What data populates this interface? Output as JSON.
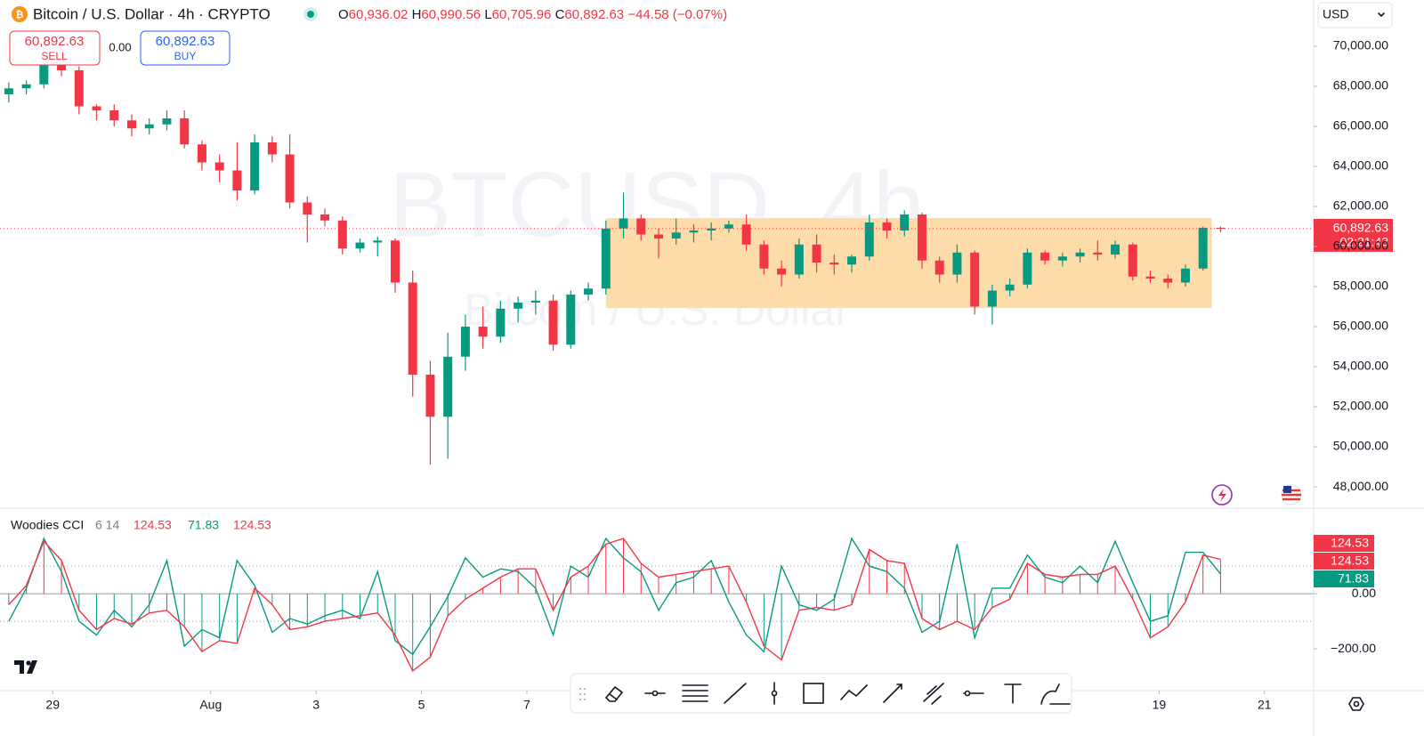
{
  "header": {
    "title": "Bitcoin / U.S. Dollar · 4h · CRYPTO",
    "ohlc": [
      {
        "key": "O",
        "text": "60,936.02"
      },
      {
        "key": "H",
        "text": "60,990.56"
      },
      {
        "key": "L",
        "text": "60,705.96"
      },
      {
        "key": "C",
        "text": "60,892.63"
      }
    ],
    "change": "−44.58 (−0.07%)",
    "currency": "USD",
    "watermark": "BTCUSD, 4h",
    "watermark_sub": "Bitcoin / U.S. Dollar"
  },
  "trade": {
    "sell_price": "60,892.63",
    "sell": "SELL",
    "spread": "0.00",
    "buy_price": "60,892.63",
    "buy": "BUY"
  },
  "chart_data": [
    {
      "type": "candlestick",
      "colors": {
        "up": "#089981",
        "down": "#f23645"
      },
      "xlim": [
        -0.5,
        74.3
      ],
      "xticks": [
        {
          "value": 2.5,
          "label": "29"
        },
        {
          "value": 11.5,
          "label": "Aug"
        },
        {
          "value": 17.5,
          "label": "3"
        },
        {
          "value": 23.5,
          "label": "5"
        },
        {
          "value": 29.5,
          "label": "7"
        },
        {
          "value": 65.5,
          "label": "19"
        },
        {
          "value": 71.5,
          "label": "21"
        }
      ],
      "ylim": [
        46980,
        72310
      ],
      "yticks": [
        {
          "value": 48000,
          "label": "48,000.00"
        },
        {
          "value": 50000,
          "label": "50,000.00"
        },
        {
          "value": 52000,
          "label": "52,000.00"
        },
        {
          "value": 54000,
          "label": "54,000.00"
        },
        {
          "value": 56000,
          "label": "56,000.00"
        },
        {
          "value": 58000,
          "label": "58,000.00"
        },
        {
          "value": 60000,
          "label": "60,000.00"
        },
        {
          "value": 62000,
          "label": "62,000.00"
        },
        {
          "value": 64000,
          "label": "64,000.00"
        },
        {
          "value": 66000,
          "label": "66,000.00"
        },
        {
          "value": 68000,
          "label": "68,000.00"
        },
        {
          "value": 70000,
          "label": "70,000.00"
        }
      ],
      "open": [
        67600,
        67900,
        68100,
        69300,
        68800,
        67000,
        66800,
        66300,
        65900,
        66100,
        66400,
        65100,
        64200,
        63800,
        62800,
        65200,
        64600,
        62200,
        61600,
        61300,
        59900,
        60200,
        60300,
        58200,
        53600,
        51500,
        54500,
        56000,
        55500,
        56900,
        57200,
        57300,
        55100,
        57600,
        57900,
        60900,
        61400,
        60600,
        60400,
        60700,
        60800,
        60900,
        61100,
        60100,
        58900,
        58600,
        60100,
        59200,
        59100,
        59500,
        61200,
        60800,
        61600,
        59300,
        58600,
        59700,
        57000,
        57800,
        58100,
        59700,
        59300,
        59500,
        59700,
        59600,
        60100,
        58500,
        58400,
        58200,
        58900,
        60936.02
      ],
      "high": [
        68200,
        68300,
        69600,
        70300,
        69000,
        67100,
        67100,
        66600,
        66400,
        66800,
        66800,
        65300,
        64600,
        65200,
        65600,
        65500,
        65600,
        62500,
        61900,
        61500,
        60400,
        60500,
        60400,
        58800,
        54300,
        55700,
        56600,
        57000,
        57300,
        57500,
        57800,
        57600,
        57800,
        58200,
        61300,
        62700,
        61600,
        60900,
        61400,
        61100,
        61200,
        61300,
        61600,
        60300,
        59300,
        60400,
        60600,
        59600,
        59600,
        61600,
        61400,
        61800,
        61700,
        59500,
        60100,
        59800,
        58100,
        58400,
        59900,
        59800,
        59700,
        59900,
        60300,
        60300,
        60200,
        58800,
        58600,
        59100,
        61000,
        60990.56
      ],
      "low": [
        67200,
        67600,
        67900,
        68500,
        66600,
        66300,
        66000,
        65500,
        65600,
        65800,
        64900,
        63800,
        63200,
        62300,
        62600,
        64200,
        61900,
        60200,
        61000,
        59600,
        59700,
        59500,
        57700,
        52500,
        49100,
        49400,
        53800,
        54900,
        55200,
        56200,
        56600,
        54800,
        54900,
        57300,
        57600,
        60400,
        60300,
        59400,
        60100,
        60200,
        60300,
        60700,
        59800,
        58600,
        58000,
        58400,
        58700,
        58600,
        58700,
        59300,
        60400,
        60500,
        58900,
        58200,
        58200,
        56600,
        56100,
        57500,
        57900,
        59100,
        59000,
        59200,
        59300,
        59400,
        58300,
        58200,
        57900,
        58000,
        58800,
        60705.96
      ],
      "close": [
        67900,
        68100,
        69300,
        68800,
        67000,
        66800,
        66300,
        65900,
        66100,
        66400,
        65100,
        64200,
        63800,
        62800,
        65200,
        64600,
        62200,
        61600,
        61300,
        59900,
        60200,
        60300,
        58200,
        53600,
        51500,
        54500,
        56000,
        55500,
        56900,
        57200,
        57300,
        55100,
        57600,
        57900,
        60900,
        61400,
        60600,
        60400,
        60700,
        60800,
        60900,
        61100,
        60100,
        58900,
        58600,
        60100,
        59200,
        59100,
        59500,
        61200,
        60800,
        61600,
        59300,
        58600,
        59700,
        57000,
        57800,
        58100,
        59700,
        59300,
        59500,
        59700,
        59600,
        60100,
        58500,
        58400,
        58200,
        58900,
        60936.02,
        60892.63
      ],
      "last_label": "60,892.63",
      "countdown": "02:21:43",
      "range_box": {
        "low": 56930,
        "high": 61420,
        "start": 34,
        "end": 68,
        "color": "#fedcaa"
      }
    },
    {
      "type": "line",
      "title": "Woodies CCI",
      "params": "6 14",
      "ylim": [
        -332,
        297
      ],
      "yticks": [
        {
          "value": 0,
          "label": "0.00"
        },
        {
          "value": -200,
          "label": "−200.00"
        }
      ],
      "levels": [
        100,
        -100
      ],
      "zero_line": true,
      "histogram_colors": {
        "up": "#f23645",
        "down": "#089981"
      },
      "series": [
        {
          "color": "#f23645",
          "values": [
            -40,
            30,
            190,
            120,
            -60,
            -130,
            -90,
            -110,
            -70,
            -60,
            -120,
            -210,
            -170,
            -180,
            20,
            -40,
            -130,
            -120,
            -100,
            -90,
            -80,
            -70,
            -150,
            -280,
            -230,
            -80,
            -20,
            20,
            60,
            90,
            90,
            -60,
            60,
            100,
            180,
            200,
            110,
            60,
            70,
            80,
            90,
            100,
            -30,
            -190,
            -240,
            -60,
            -50,
            -60,
            -40,
            160,
            120,
            110,
            -90,
            -130,
            -100,
            -130,
            -50,
            -20,
            110,
            70,
            60,
            70,
            70,
            100,
            -20,
            -160,
            -120,
            -30,
            140,
            124.53
          ]
        },
        {
          "color": "#089981",
          "values": [
            -100,
            20,
            200,
            80,
            -100,
            -150,
            -60,
            -120,
            -40,
            120,
            -190,
            -130,
            -160,
            120,
            30,
            -140,
            -90,
            -110,
            -80,
            -60,
            -90,
            80,
            -170,
            -220,
            -120,
            -10,
            130,
            60,
            90,
            80,
            20,
            -150,
            100,
            60,
            200,
            130,
            80,
            -60,
            40,
            60,
            120,
            -30,
            -150,
            -210,
            100,
            -40,
            -60,
            -20,
            200,
            100,
            80,
            20,
            -140,
            -100,
            180,
            -160,
            20,
            20,
            140,
            60,
            40,
            100,
            40,
            190,
            40,
            -100,
            -80,
            150,
            150,
            71.83
          ]
        }
      ]
    }
  ]
}
